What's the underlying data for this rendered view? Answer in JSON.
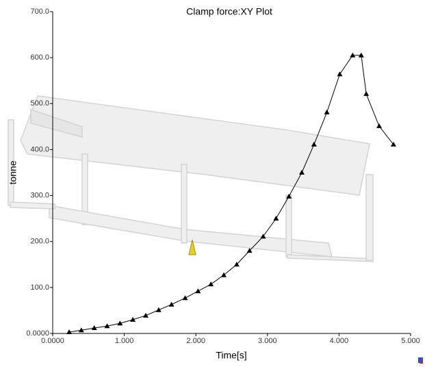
{
  "chart_data": {
    "type": "line",
    "title": "Clamp force:XY Plot",
    "x_label": "Time[s]",
    "y_label": "tonne",
    "series": [
      {
        "color": "#000000",
        "x": [
          0.23,
          0.4,
          0.58,
          0.76,
          0.94,
          1.12,
          1.3,
          1.48,
          1.66,
          1.85,
          2.03,
          2.21,
          2.39,
          2.57,
          2.75,
          2.94,
          3.12,
          3.3,
          3.48,
          3.65,
          3.83,
          4.01,
          4.19,
          4.31,
          4.38,
          4.56,
          4.76
        ],
        "values": [
          3,
          7,
          12,
          16,
          22,
          30,
          39,
          51,
          63,
          77,
          92,
          107,
          127,
          150,
          180,
          211,
          250,
          298,
          350,
          411,
          481,
          564,
          605,
          605,
          521,
          451,
          411
        ]
      }
    ],
    "xlim": [
      0,
      5
    ],
    "ylim": [
      0,
      700
    ],
    "xticks": [
      {
        "value": 0,
        "label": "0.0000"
      },
      {
        "value": 1,
        "label": "1.000"
      },
      {
        "value": 2,
        "label": "2.000"
      },
      {
        "value": 3,
        "label": "3.000"
      },
      {
        "value": 4,
        "label": "4.000"
      },
      {
        "value": 5,
        "label": "5.000"
      }
    ],
    "yticks": [
      {
        "value": 0,
        "label": "0.0000"
      },
      {
        "value": 100,
        "label": "100.0"
      },
      {
        "value": 200,
        "label": "200.0"
      },
      {
        "value": 300,
        "label": "300.0"
      },
      {
        "value": 400,
        "label": "400.0"
      },
      {
        "value": 500,
        "label": "500.0"
      },
      {
        "value": 600,
        "label": "600.0"
      },
      {
        "value": 700,
        "label": "700.0"
      }
    ]
  }
}
